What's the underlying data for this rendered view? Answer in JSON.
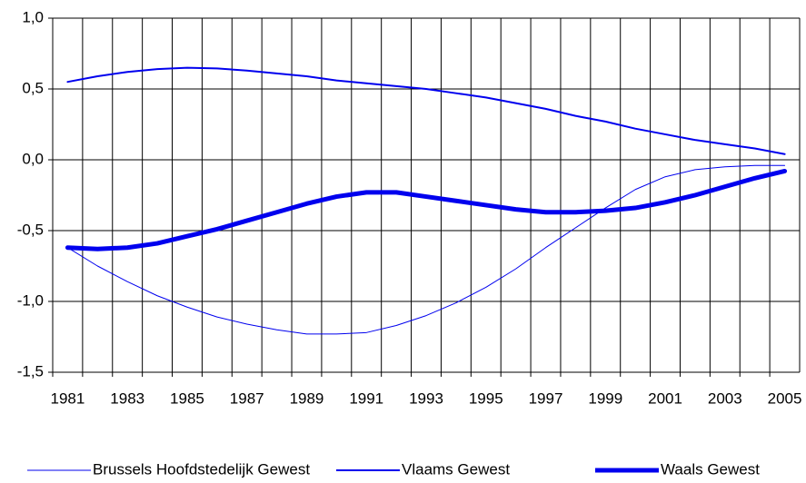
{
  "chart_data": {
    "type": "line",
    "categories": [
      "1981",
      null,
      "1983",
      null,
      "1985",
      null,
      "1987",
      null,
      "1989",
      null,
      "1991",
      null,
      "1993",
      null,
      "1995",
      null,
      "1997",
      null,
      "1999",
      null,
      "2001",
      null,
      "2003",
      null,
      "2005"
    ],
    "series": [
      {
        "name": "Brussels Hoofdstedelijk Gewest",
        "color": "#0000ee",
        "linewidth": 1,
        "values": [
          -0.62,
          -0.75,
          -0.86,
          -0.96,
          -1.04,
          -1.11,
          -1.16,
          -1.2,
          -1.23,
          -1.23,
          -1.22,
          -1.17,
          -1.1,
          -1.01,
          -0.9,
          -0.77,
          -0.62,
          -0.48,
          -0.34,
          -0.21,
          -0.12,
          -0.07,
          -0.05,
          -0.04,
          -0.04
        ]
      },
      {
        "name": "Vlaams Gewest",
        "color": "#0000ee",
        "linewidth": 2,
        "values": [
          0.55,
          0.59,
          0.62,
          0.64,
          0.65,
          0.645,
          0.63,
          0.61,
          0.59,
          0.56,
          0.54,
          0.52,
          0.5,
          0.47,
          0.44,
          0.4,
          0.36,
          0.31,
          0.27,
          0.22,
          0.18,
          0.14,
          0.11,
          0.08,
          0.04
        ]
      },
      {
        "name": "Waals Gewest",
        "color": "#0000ee",
        "linewidth": 5,
        "values": [
          -0.62,
          -0.63,
          -0.62,
          -0.59,
          -0.54,
          -0.49,
          -0.43,
          -0.37,
          -0.31,
          -0.26,
          -0.23,
          -0.23,
          -0.26,
          -0.29,
          -0.32,
          -0.35,
          -0.37,
          -0.37,
          -0.36,
          -0.34,
          -0.3,
          -0.25,
          -0.19,
          -0.13,
          -0.08
        ]
      }
    ],
    "ylim": [
      -1.5,
      1.0
    ],
    "yticks": [
      {
        "value": -1.5,
        "label": "-1,5"
      },
      {
        "value": -1.0,
        "label": "-1,0"
      },
      {
        "value": -0.5,
        "label": "-0,5"
      },
      {
        "value": 0.0,
        "label": "0,0"
      },
      {
        "value": 0.5,
        "label": "0,5"
      },
      {
        "value": 1.0,
        "label": "1,0"
      }
    ],
    "grid": true,
    "legend": "bottom"
  }
}
